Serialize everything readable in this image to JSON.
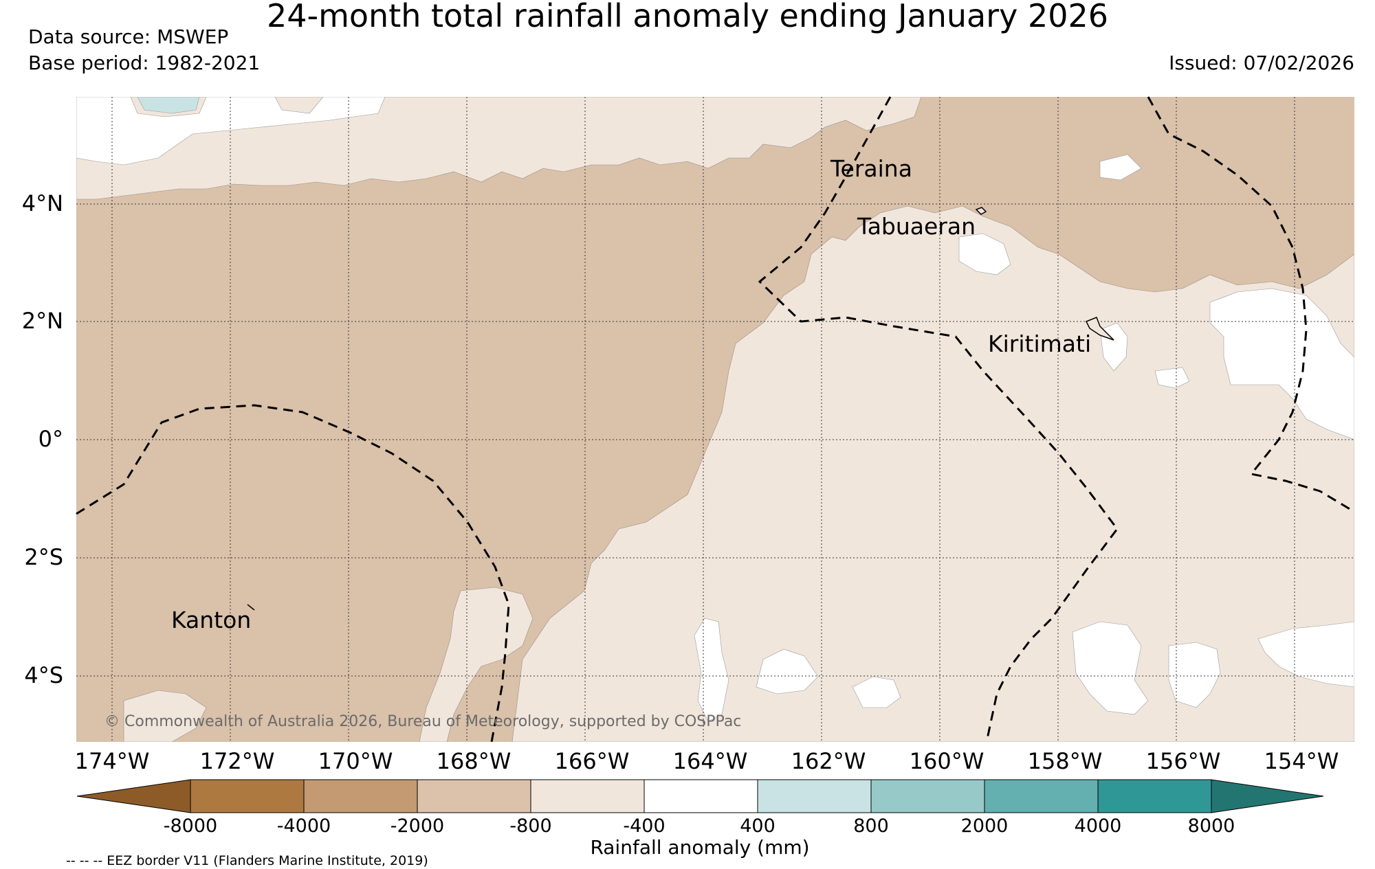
{
  "header": {
    "title": "24-month total rainfall anomaly ending January 2026",
    "data_source": "Data source: MSWEP",
    "base_period": "Base period: 1982-2021",
    "issued": "Issued: 07/02/2026"
  },
  "map": {
    "lat_labels": [
      "4°N",
      "2°N",
      "0°",
      "2°S",
      "4°S"
    ],
    "lon_labels": [
      "174°W",
      "172°W",
      "170°W",
      "168°W",
      "166°W",
      "164°W",
      "162°W",
      "160°W",
      "158°W",
      "156°W",
      "154°W"
    ],
    "places": [
      "Teraina",
      "Tabuaeran",
      "Kiritimati",
      "Kanton"
    ],
    "copyright": "© Commonwealth of Australia 2026, Bureau of Meteorology, supported by COSPPac",
    "colors": {
      "very_dry": "#d9c1aa",
      "dry": "#f1e6dc",
      "neutral": "#ffffff",
      "wet": "#c9e3e4"
    }
  },
  "colorbar": {
    "label": "Rainfall anomaly (mm)",
    "ticks": [
      "-8000",
      "-4000",
      "-2000",
      "-800",
      "-400",
      "400",
      "800",
      "2000",
      "4000",
      "8000"
    ],
    "colors": [
      "#8d5b28",
      "#ad7941",
      "#c49a73",
      "#dcc2ab",
      "#f1e6dc",
      "#ffffff",
      "#c9e3e4",
      "#98c9c9",
      "#64b0b0",
      "#2f9896",
      "#237572"
    ]
  },
  "legend": {
    "eez": "-- -- -- EEZ border V11 (Flanders Marine Institute, 2019)"
  }
}
